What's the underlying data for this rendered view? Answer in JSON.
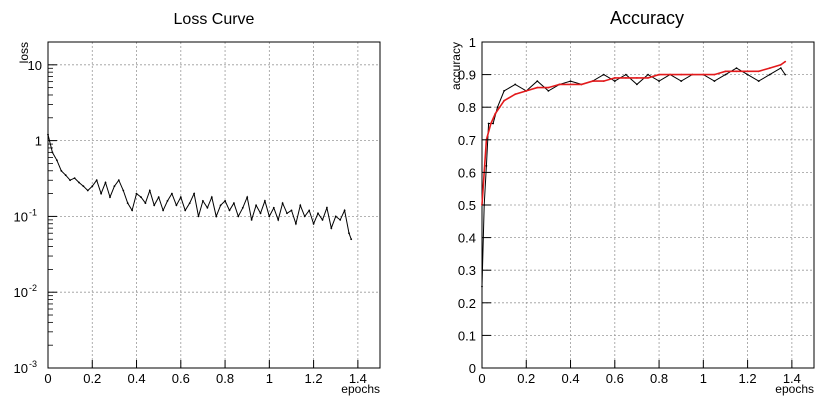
{
  "chart_data": [
    {
      "type": "line",
      "title": "Loss Curve",
      "xlabel": "epochs",
      "ylabel": "loss",
      "yscale": "log",
      "xlim": [
        0,
        1.5
      ],
      "ylim": [
        0.001,
        20
      ],
      "grid": true,
      "x_ticks": [
        0,
        0.2,
        0.4,
        0.6,
        0.8,
        1,
        1.2,
        1.4
      ],
      "x_tick_labels": [
        "0",
        "0.2",
        "0.4",
        "0.6",
        "0.8",
        "1",
        "1.2",
        "1.4"
      ],
      "y_ticks": [
        0.001,
        0.01,
        0.1,
        1,
        10
      ],
      "y_tick_labels": [
        {
          "base": "10",
          "exp": "-3"
        },
        {
          "base": "10",
          "exp": "-2"
        },
        {
          "base": "10",
          "exp": "-1"
        },
        {
          "base": "1",
          "exp": ""
        },
        {
          "base": "10",
          "exp": ""
        }
      ],
      "series": [
        {
          "color": "#000000",
          "x": [
            0.0,
            0.02,
            0.04,
            0.06,
            0.08,
            0.1,
            0.12,
            0.14,
            0.16,
            0.18,
            0.2,
            0.22,
            0.24,
            0.26,
            0.28,
            0.3,
            0.32,
            0.34,
            0.36,
            0.38,
            0.4,
            0.42,
            0.44,
            0.46,
            0.48,
            0.5,
            0.52,
            0.54,
            0.56,
            0.58,
            0.6,
            0.62,
            0.64,
            0.66,
            0.68,
            0.7,
            0.72,
            0.74,
            0.76,
            0.78,
            0.8,
            0.82,
            0.84,
            0.86,
            0.88,
            0.9,
            0.92,
            0.94,
            0.96,
            0.98,
            1.0,
            1.02,
            1.04,
            1.06,
            1.08,
            1.1,
            1.12,
            1.14,
            1.16,
            1.18,
            1.2,
            1.22,
            1.24,
            1.26,
            1.28,
            1.3,
            1.32,
            1.34,
            1.36,
            1.37
          ],
          "values": [
            1.2,
            0.7,
            0.55,
            0.4,
            0.35,
            0.3,
            0.32,
            0.28,
            0.25,
            0.22,
            0.25,
            0.3,
            0.2,
            0.28,
            0.18,
            0.25,
            0.3,
            0.22,
            0.15,
            0.12,
            0.2,
            0.18,
            0.15,
            0.22,
            0.14,
            0.18,
            0.12,
            0.16,
            0.2,
            0.14,
            0.18,
            0.12,
            0.15,
            0.2,
            0.1,
            0.16,
            0.13,
            0.18,
            0.1,
            0.14,
            0.16,
            0.12,
            0.15,
            0.1,
            0.13,
            0.18,
            0.09,
            0.14,
            0.11,
            0.16,
            0.1,
            0.13,
            0.09,
            0.15,
            0.11,
            0.12,
            0.08,
            0.14,
            0.1,
            0.12,
            0.08,
            0.11,
            0.09,
            0.13,
            0.07,
            0.1,
            0.09,
            0.12,
            0.06,
            0.05
          ]
        }
      ]
    },
    {
      "type": "line",
      "title": "Accuracy",
      "xlabel": "epochs",
      "ylabel": "accuracy",
      "xlim": [
        0,
        1.5
      ],
      "ylim": [
        0,
        1
      ],
      "grid": true,
      "x_ticks": [
        0,
        0.2,
        0.4,
        0.6,
        0.8,
        1,
        1.2,
        1.4
      ],
      "x_tick_labels": [
        "0",
        "0.2",
        "0.4",
        "0.6",
        "0.8",
        "1",
        "1.2",
        "1.4"
      ],
      "y_ticks": [
        0,
        0.1,
        0.2,
        0.3,
        0.4,
        0.5,
        0.6,
        0.7,
        0.8,
        0.9,
        1
      ],
      "y_tick_labels": [
        "0",
        "0.1",
        "0.2",
        "0.3",
        "0.4",
        "0.5",
        "0.6",
        "0.7",
        "0.8",
        "0.9",
        "1"
      ],
      "series": [
        {
          "color": "#000000",
          "x": [
            0.0,
            0.01,
            0.02,
            0.03,
            0.05,
            0.07,
            0.1,
            0.15,
            0.2,
            0.25,
            0.3,
            0.35,
            0.4,
            0.45,
            0.5,
            0.55,
            0.6,
            0.65,
            0.7,
            0.75,
            0.8,
            0.85,
            0.9,
            0.95,
            1.0,
            1.05,
            1.1,
            1.15,
            1.2,
            1.25,
            1.3,
            1.35,
            1.37
          ],
          "values": [
            0.25,
            0.5,
            0.62,
            0.75,
            0.75,
            0.8,
            0.85,
            0.87,
            0.85,
            0.88,
            0.85,
            0.87,
            0.88,
            0.87,
            0.88,
            0.9,
            0.88,
            0.9,
            0.87,
            0.9,
            0.88,
            0.9,
            0.88,
            0.9,
            0.9,
            0.88,
            0.9,
            0.92,
            0.9,
            0.88,
            0.9,
            0.92,
            0.9
          ]
        },
        {
          "color": "#e31a1c",
          "x": [
            0.0,
            0.02,
            0.04,
            0.06,
            0.08,
            0.1,
            0.15,
            0.2,
            0.25,
            0.3,
            0.35,
            0.4,
            0.45,
            0.5,
            0.55,
            0.6,
            0.65,
            0.7,
            0.75,
            0.8,
            0.85,
            0.9,
            0.95,
            1.0,
            1.05,
            1.1,
            1.15,
            1.2,
            1.25,
            1.3,
            1.35,
            1.37
          ],
          "values": [
            0.5,
            0.7,
            0.75,
            0.78,
            0.8,
            0.82,
            0.84,
            0.85,
            0.86,
            0.86,
            0.87,
            0.87,
            0.87,
            0.88,
            0.88,
            0.89,
            0.89,
            0.89,
            0.89,
            0.9,
            0.9,
            0.9,
            0.9,
            0.9,
            0.9,
            0.91,
            0.91,
            0.91,
            0.91,
            0.92,
            0.93,
            0.94
          ]
        }
      ]
    }
  ]
}
